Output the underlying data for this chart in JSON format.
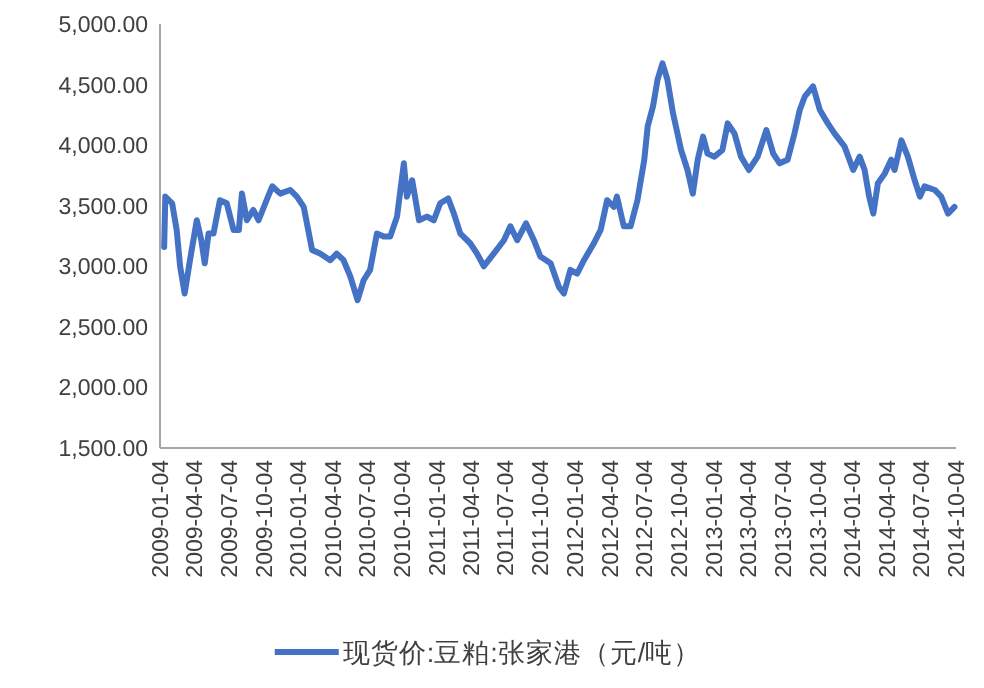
{
  "chart_data": {
    "type": "line",
    "x": [
      "2009-01-15",
      "2009-01-18",
      "2009-02-05",
      "2009-02-17",
      "2009-02-26",
      "2009-03-10",
      "2009-03-24",
      "2009-04-11",
      "2009-04-23",
      "2009-05-02",
      "2009-05-12",
      "2009-05-25",
      "2009-06-11",
      "2009-06-29",
      "2009-07-17",
      "2009-07-31",
      "2009-08-08",
      "2009-08-21",
      "2009-09-07",
      "2009-09-21",
      "2009-10-12",
      "2009-10-27",
      "2009-11-17",
      "2009-12-13",
      "2009-12-31",
      "2010-01-18",
      "2010-02-09",
      "2010-03-02",
      "2010-03-29",
      "2010-04-15",
      "2010-05-03",
      "2010-05-21",
      "2010-06-09",
      "2010-06-25",
      "2010-07-12",
      "2010-07-30",
      "2010-08-17",
      "2010-09-03",
      "2010-09-21",
      "2010-10-09",
      "2010-10-17",
      "2010-10-31",
      "2010-11-18",
      "2010-12-09",
      "2010-12-27",
      "2011-01-13",
      "2011-02-03",
      "2011-02-18",
      "2011-03-07",
      "2011-04-02",
      "2011-04-20",
      "2011-05-08",
      "2011-06-03",
      "2011-06-30",
      "2011-07-17",
      "2011-08-04",
      "2011-08-27",
      "2011-09-17",
      "2011-10-04",
      "2011-10-31",
      "2011-11-22",
      "2011-12-05",
      "2011-12-22",
      "2012-01-09",
      "2012-01-27",
      "2012-02-22",
      "2012-03-11",
      "2012-03-28",
      "2012-04-15",
      "2012-04-23",
      "2012-05-11",
      "2012-05-29",
      "2012-06-16",
      "2012-07-04",
      "2012-07-13",
      "2012-07-27",
      "2012-08-08",
      "2012-08-21",
      "2012-09-03",
      "2012-09-18",
      "2012-10-09",
      "2012-10-26",
      "2012-11-09",
      "2012-11-22",
      "2012-12-06",
      "2012-12-18",
      "2013-01-05",
      "2013-01-26",
      "2013-02-09",
      "2013-02-27",
      "2013-03-16",
      "2013-04-06",
      "2013-04-29",
      "2013-05-22",
      "2013-06-09",
      "2013-06-26",
      "2013-07-17",
      "2013-08-04",
      "2013-08-18",
      "2013-08-31",
      "2013-09-22",
      "2013-10-10",
      "2013-10-31",
      "2013-11-18",
      "2013-12-14",
      "2014-01-06",
      "2014-01-23",
      "2014-02-05",
      "2014-02-17",
      "2014-02-28",
      "2014-03-12",
      "2014-03-30",
      "2014-04-16",
      "2014-04-25",
      "2014-05-13",
      "2014-05-30",
      "2014-06-17",
      "2014-07-01",
      "2014-07-13",
      "2014-08-09",
      "2014-08-26",
      "2014-09-13",
      "2014-09-30"
    ],
    "series": [
      {
        "name": "现货价:豆粕:张家港（元/吨）",
        "color": "#4472c4",
        "values": [
          3160,
          3575,
          3520,
          3300,
          3000,
          2775,
          3050,
          3380,
          3215,
          3025,
          3270,
          3270,
          3545,
          3520,
          3300,
          3300,
          3600,
          3380,
          3465,
          3380,
          3545,
          3660,
          3600,
          3630,
          3575,
          3490,
          3135,
          3105,
          3050,
          3105,
          3050,
          2915,
          2720,
          2885,
          2970,
          3270,
          3245,
          3245,
          3410,
          3850,
          3575,
          3710,
          3380,
          3410,
          3380,
          3520,
          3560,
          3435,
          3270,
          3190,
          3105,
          3000,
          3105,
          3215,
          3330,
          3215,
          3355,
          3215,
          3080,
          3025,
          2830,
          2775,
          2970,
          2940,
          3050,
          3190,
          3300,
          3545,
          3490,
          3575,
          3330,
          3330,
          3545,
          3880,
          4155,
          4320,
          4540,
          4675,
          4540,
          4260,
          3960,
          3795,
          3600,
          3880,
          4070,
          3930,
          3905,
          3960,
          4180,
          4095,
          3905,
          3795,
          3905,
          4125,
          3930,
          3850,
          3880,
          4095,
          4290,
          4400,
          4485,
          4290,
          4180,
          4095,
          3990,
          3795,
          3905,
          3795,
          3575,
          3435,
          3685,
          3765,
          3880,
          3795,
          4040,
          3905,
          3710,
          3575,
          3660,
          3630,
          3575,
          3435,
          3490
        ]
      }
    ],
    "xlim": [
      "2009-01-04",
      "2014-10-04"
    ],
    "ylim": [
      1500,
      5000
    ],
    "xticks": [
      "2009-01-04",
      "2009-04-04",
      "2009-07-04",
      "2009-10-04",
      "2010-01-04",
      "2010-04-04",
      "2010-07-04",
      "2010-10-04",
      "2011-01-04",
      "2011-04-04",
      "2011-07-04",
      "2011-10-04",
      "2012-01-04",
      "2012-04-04",
      "2012-07-04",
      "2012-10-04",
      "2013-01-04",
      "2013-04-04",
      "2013-07-04",
      "2013-10-04",
      "2014-01-04",
      "2014-04-04",
      "2014-07-04",
      "2014-10-04"
    ],
    "yticks": [
      {
        "value": 1500,
        "label": "1,500.00"
      },
      {
        "value": 2000,
        "label": "2,000.00"
      },
      {
        "value": 2500,
        "label": "2,500.00"
      },
      {
        "value": 3000,
        "label": "3,000.00"
      },
      {
        "value": 3500,
        "label": "3,500.00"
      },
      {
        "value": 4000,
        "label": "4,000.00"
      },
      {
        "value": 4500,
        "label": "4,500.00"
      },
      {
        "value": 5000,
        "label": "5,000.00"
      }
    ],
    "legend": "bottom",
    "line_style": "solid",
    "grid": false
  }
}
